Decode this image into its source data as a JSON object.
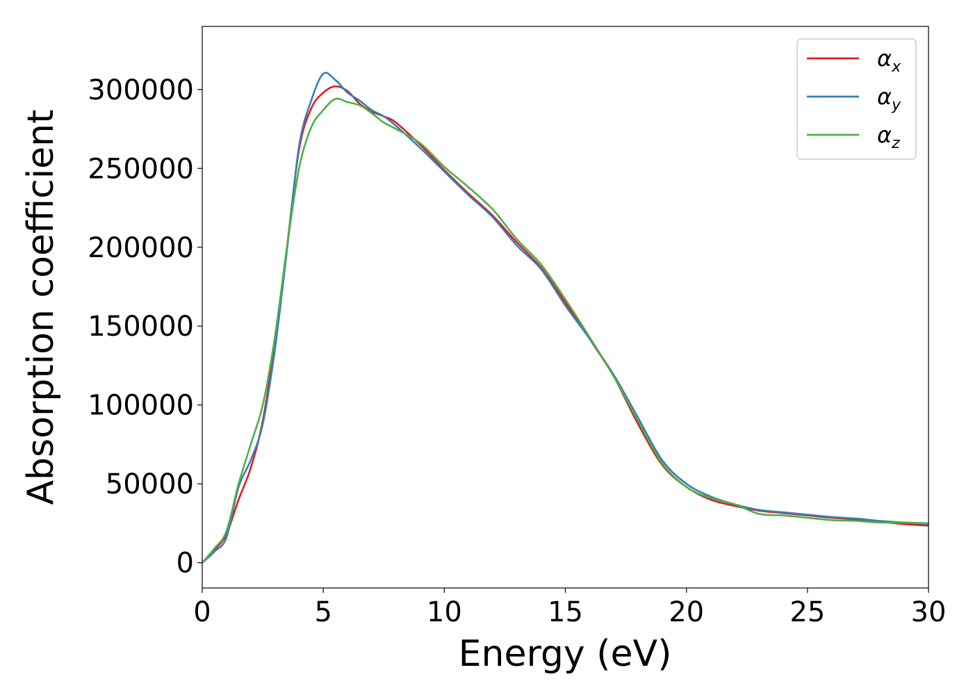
{
  "chart_data": {
    "type": "line",
    "xlabel": "Energy (eV)",
    "ylabel": "Absorption coefficient",
    "xlim": [
      0,
      30
    ],
    "ylim": [
      -16000,
      340000
    ],
    "xticks": [
      0,
      5,
      10,
      15,
      20,
      25,
      30
    ],
    "xtick_labels": [
      "0",
      "5",
      "10",
      "15",
      "20",
      "25",
      "30"
    ],
    "yticks": [
      0,
      50000,
      100000,
      150000,
      200000,
      250000,
      300000
    ],
    "ytick_labels": [
      "0",
      "50000",
      "100000",
      "150000",
      "200000",
      "250000",
      "300000"
    ],
    "grid": false,
    "legend_position": "top-right",
    "series": [
      {
        "name": "α_x",
        "label_main": "α",
        "label_sub": "x",
        "color": "#e41a1c",
        "x": [
          0,
          0.5,
          1.0,
          1.5,
          2.0,
          2.5,
          3.0,
          3.5,
          4.0,
          4.5,
          5.0,
          5.5,
          6.0,
          6.5,
          7.0,
          7.5,
          8.0,
          9.0,
          10.0,
          11.0,
          12.0,
          13.0,
          14.0,
          15.0,
          16.0,
          17.0,
          18.0,
          19.0,
          20.0,
          21.0,
          22.0,
          23.0,
          24.0,
          25.0,
          26.0,
          27.0,
          28.0,
          29.0,
          30.0
        ],
        "y": [
          0,
          8000,
          18000,
          40000,
          60000,
          90000,
          140000,
          200000,
          262000,
          288000,
          298000,
          302000,
          299000,
          291000,
          286000,
          283000,
          279000,
          265000,
          249000,
          234000,
          220000,
          203000,
          187000,
          165000,
          142000,
          118000,
          88000,
          62000,
          48000,
          40000,
          36000,
          33000,
          31500,
          30000,
          28500,
          27500,
          26000,
          24500,
          23500
        ]
      },
      {
        "name": "α_y",
        "label_main": "α",
        "label_sub": "y",
        "color": "#377eb8",
        "x": [
          0,
          0.5,
          1.0,
          1.5,
          2.0,
          2.5,
          3.0,
          3.5,
          4.0,
          4.5,
          5.0,
          5.5,
          6.0,
          6.5,
          7.0,
          7.5,
          8.0,
          9.0,
          10.0,
          11.0,
          12.0,
          13.0,
          14.0,
          15.0,
          16.0,
          17.0,
          18.0,
          19.0,
          20.0,
          21.0,
          22.0,
          23.0,
          24.0,
          25.0,
          26.0,
          27.0,
          28.0,
          29.0,
          30.0
        ],
        "y": [
          0,
          7000,
          16000,
          48000,
          65000,
          88000,
          135000,
          198000,
          264000,
          293000,
          310000,
          306000,
          298000,
          293000,
          287000,
          283000,
          277000,
          263000,
          248000,
          233000,
          219000,
          201000,
          186000,
          163000,
          142000,
          119000,
          92000,
          65000,
          50000,
          42000,
          37000,
          33500,
          32000,
          30500,
          29000,
          28000,
          26500,
          25500,
          24500
        ]
      },
      {
        "name": "α_z",
        "label_main": "α",
        "label_sub": "z",
        "color": "#4daf4a",
        "x": [
          0,
          0.5,
          1.0,
          1.5,
          2.0,
          2.5,
          3.0,
          3.5,
          4.0,
          4.5,
          5.0,
          5.5,
          6.0,
          6.5,
          7.0,
          7.5,
          8.0,
          9.0,
          10.0,
          11.0,
          12.0,
          13.0,
          14.0,
          15.0,
          16.0,
          17.0,
          18.0,
          19.0,
          20.0,
          21.0,
          22.0,
          23.0,
          24.0,
          25.0,
          26.0,
          27.0,
          28.0,
          29.0,
          30.0
        ],
        "y": [
          0,
          9000,
          20000,
          50000,
          75000,
          100000,
          143000,
          200000,
          250000,
          276000,
          287000,
          294000,
          292000,
          290000,
          285000,
          279000,
          275000,
          266000,
          251000,
          238000,
          224000,
          205000,
          189000,
          167000,
          143000,
          118000,
          90000,
          63000,
          48000,
          41000,
          37000,
          31000,
          30000,
          28500,
          27000,
          26500,
          25500,
          25500,
          25000
        ]
      }
    ]
  }
}
